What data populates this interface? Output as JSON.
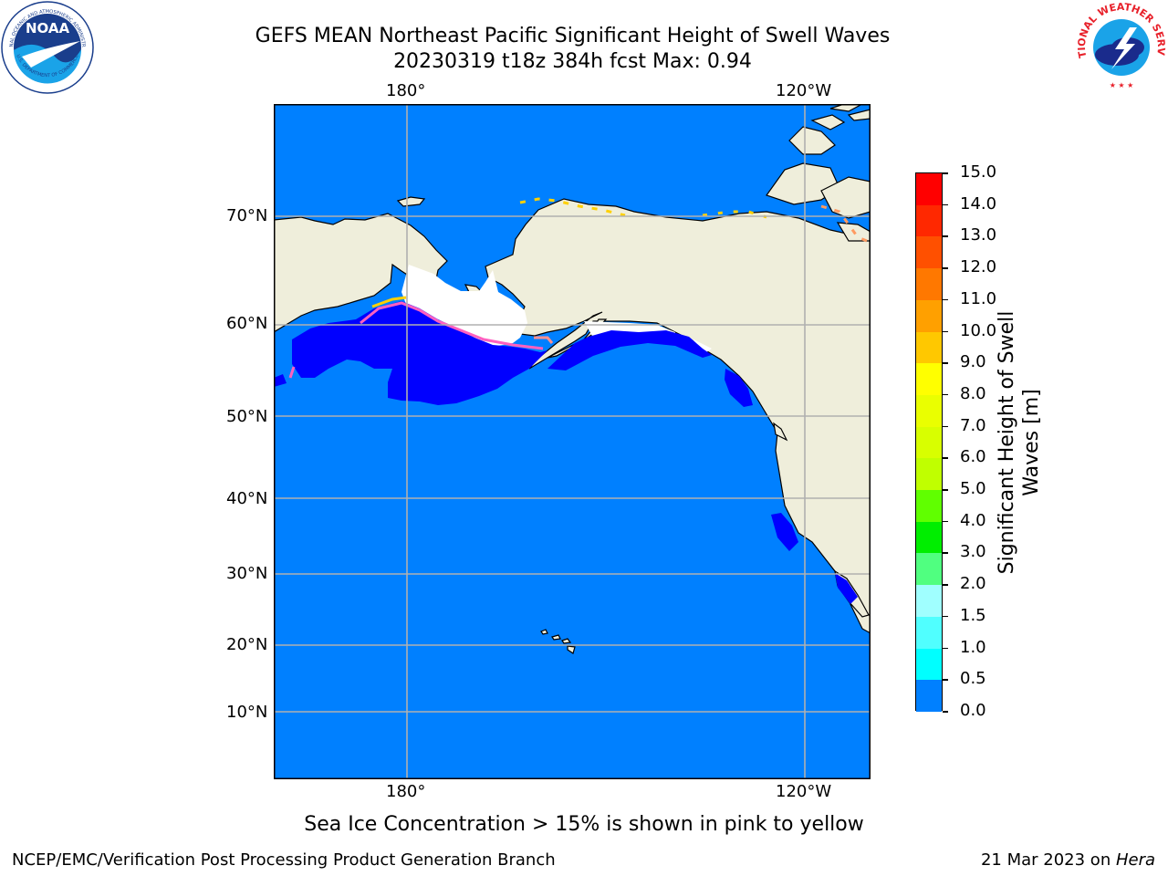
{
  "header": {
    "title_line1": "GEFS MEAN Northeast Pacific Significant Height of Swell Waves",
    "title_line2": "20230319 t18z 384h fcst   Max: 0.94"
  },
  "map": {
    "lon_labels": [
      "180°",
      "120°W"
    ],
    "lat_labels": [
      "70°N",
      "60°N",
      "50°N",
      "40°N",
      "30°N",
      "20°N",
      "10°N"
    ],
    "colors": {
      "ocean_main": "#0080ff",
      "ocean_low": "#0000ff",
      "land": "#efeedb",
      "sea_ice": "#ffffff",
      "ice_edge_pink": "#ff60c0",
      "ice_edge_yellow": "#ffd000",
      "grid": "#b0b0b0"
    }
  },
  "colorbar": {
    "title_line1": "Significant Height of Swell",
    "title_line2": "Waves [m]",
    "levels": [
      "15.0",
      "14.0",
      "13.0",
      "12.0",
      "11.0",
      "10.0",
      "9.0",
      "8.0",
      "7.0",
      "6.0",
      "5.0",
      "4.0",
      "3.0",
      "2.0",
      "1.5",
      "1.0",
      "0.5",
      "0.0"
    ],
    "colors": [
      "#ff0000",
      "#ff2800",
      "#ff5000",
      "#ff7800",
      "#ffa000",
      "#ffc800",
      "#ffff00",
      "#eaff00",
      "#d8ff00",
      "#c0ff00",
      "#60ff00",
      "#00ee00",
      "#50ff80",
      "#a0ffff",
      "#50ffff",
      "#00ffff",
      "#0080ff",
      "#0000ff"
    ]
  },
  "note": "Sea Ice Concentration > 15% is shown in pink to yellow",
  "footer": {
    "left": "NCEP/EMC/Verification Post Processing Product Generation Branch",
    "right_date": "21 Mar 2023 on ",
    "right_host": "Hera"
  },
  "logos": {
    "noaa_text": "NOAA",
    "noaa_ring_text": "NATIONAL OCEANIC AND ATMOSPHERIC ADMINISTRATION",
    "noaa_ring_bottom": "U.S. DEPARTMENT OF COMMERCE",
    "nws_ring_text": "NATIONAL WEATHER SERVICE"
  }
}
